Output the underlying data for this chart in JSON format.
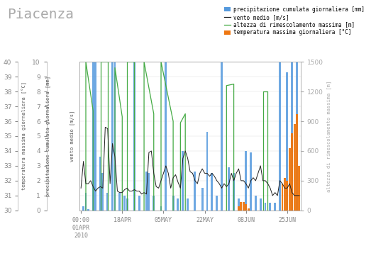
{
  "title": "Piacenza",
  "title_fontsize": 14,
  "title_color": "#aaaaaa",
  "background_color": "#ffffff",
  "ylabel_left1": "temperatura massima giornaliera [°C]",
  "ylabel_left2": "precipitazione cumulata giornaliera [mm]",
  "ylabel_left3": "vento medio [m/s]",
  "ylabel_right": "altezza di rimescolamento massima [m]",
  "ylim_main": [
    0,
    10
  ],
  "ylim_right": [
    0,
    1500
  ],
  "bar_color": "#5599dd",
  "temp_color": "#ee7711",
  "wind_color": "#222222",
  "mixing_color": "#44aa44",
  "legend_labels": [
    "precipitazione cumulata giornaliera [mm]",
    "vento medio [m/s]",
    "altezza di rimescolamento massima [m]",
    "temperatura massima giornaliera [°C]"
  ],
  "total_days": 91,
  "xtick_pos": [
    0,
    17,
    34,
    51,
    68,
    85
  ],
  "xtick_labels": [
    "00:00\n01APR\n2010",
    "18APR",
    "05MAY",
    "22MAY",
    "08JUN",
    "25JUN"
  ],
  "yticks_main": [
    0,
    1,
    2,
    3,
    4,
    5,
    6,
    7,
    8,
    9,
    10
  ],
  "ytick_labels_left1": [
    "30",
    "31",
    "32",
    "33",
    "34",
    "35",
    "36",
    "37",
    "38",
    "39",
    "40"
  ],
  "yticks_right": [
    0,
    300,
    600,
    900,
    1200,
    1500
  ],
  "precip_days": [
    1,
    2,
    3,
    5,
    6,
    8,
    9,
    11,
    13,
    14,
    16,
    18,
    19,
    22,
    24,
    27,
    28,
    30,
    33,
    35,
    38,
    40,
    42,
    44,
    47,
    50,
    52,
    54,
    56,
    58,
    61,
    63,
    65,
    68,
    70,
    72,
    74,
    76,
    78,
    80,
    82,
    85,
    87,
    89
  ],
  "precip_vals": [
    0.3,
    1.2,
    0.1,
    10,
    10,
    3.6,
    2.5,
    1.2,
    10,
    10,
    1.2,
    1.0,
    0.8,
    10,
    1.0,
    2.6,
    2.5,
    1.0,
    0.3,
    10,
    1.0,
    0.8,
    4.0,
    0.8,
    2.6,
    1.5,
    5.3,
    2.5,
    1.0,
    10,
    2.9,
    2.5,
    0.8,
    4.0,
    3.9,
    1.0,
    0.8,
    0.5,
    0.5,
    0.5,
    10,
    9.3,
    10,
    10
  ],
  "wind_vals": [
    1.5,
    3.3,
    1.8,
    1.8,
    2.0,
    1.6,
    1.3,
    1.5,
    1.6,
    1.5,
    5.6,
    5.5,
    1.8,
    4.5,
    3.6,
    1.3,
    1.2,
    1.2,
    1.4,
    1.5,
    1.3,
    1.3,
    1.4,
    1.3,
    1.3,
    1.1,
    1.2,
    1.1,
    3.9,
    4.0,
    2.5,
    1.6,
    1.5,
    2.0,
    2.5,
    3.0,
    2.5,
    1.5,
    2.2,
    2.4,
    1.9,
    1.5,
    3.5,
    4.0,
    3.5,
    2.6,
    2.5,
    2.0,
    1.8,
    2.5,
    2.8,
    2.5,
    2.5,
    2.3,
    2.5,
    2.3,
    2.0,
    1.8,
    1.5,
    1.8,
    1.6,
    1.8,
    2.5,
    2.0,
    2.5,
    2.8,
    2.0,
    2.0,
    1.8,
    1.5,
    2.0,
    2.2,
    2.0,
    2.5,
    3.0,
    2.0,
    2.0,
    1.8,
    1.5,
    1.0,
    1.2,
    1.0,
    2.0,
    1.8,
    1.5,
    1.5,
    1.8,
    1.2,
    1.0,
    1.0,
    1.0
  ],
  "mixing_segments_main": [
    {
      "x": [
        2,
        2,
        5,
        5
      ],
      "y": [
        0,
        10,
        6.7,
        0
      ]
    },
    {
      "x": [
        8,
        8,
        11,
        11
      ],
      "y": [
        0,
        10,
        10,
        0
      ]
    },
    {
      "x": [
        14,
        14,
        17,
        17
      ],
      "y": [
        0,
        9.6,
        6.3,
        0
      ]
    },
    {
      "x": [
        19,
        19,
        22,
        22
      ],
      "y": [
        0,
        10,
        10,
        0
      ]
    },
    {
      "x": [
        26,
        26,
        30,
        30
      ],
      "y": [
        0,
        10,
        6.5,
        0
      ]
    },
    {
      "x": [
        33,
        33,
        38,
        38
      ],
      "y": [
        0,
        10,
        6.0,
        0
      ]
    },
    {
      "x": [
        41,
        41,
        43,
        43
      ],
      "y": [
        0,
        5.9,
        6.5,
        0
      ]
    },
    {
      "x": [
        60,
        60,
        63,
        63
      ],
      "y": [
        0,
        8.4,
        8.5,
        0
      ]
    },
    {
      "x": [
        75,
        75,
        77,
        77
      ],
      "y": [
        0,
        8.0,
        8.0,
        0
      ]
    }
  ],
  "temp_segments": [
    {
      "days": [
        65,
        66,
        67,
        68,
        69
      ],
      "vals": [
        0.3,
        0.55,
        0.55,
        0.4,
        0.15
      ]
    },
    {
      "days": [
        83,
        84,
        85,
        86,
        87,
        88,
        89,
        90
      ],
      "vals": [
        1.8,
        2.2,
        2.0,
        4.2,
        5.2,
        5.8,
        6.5,
        3.0
      ]
    }
  ]
}
